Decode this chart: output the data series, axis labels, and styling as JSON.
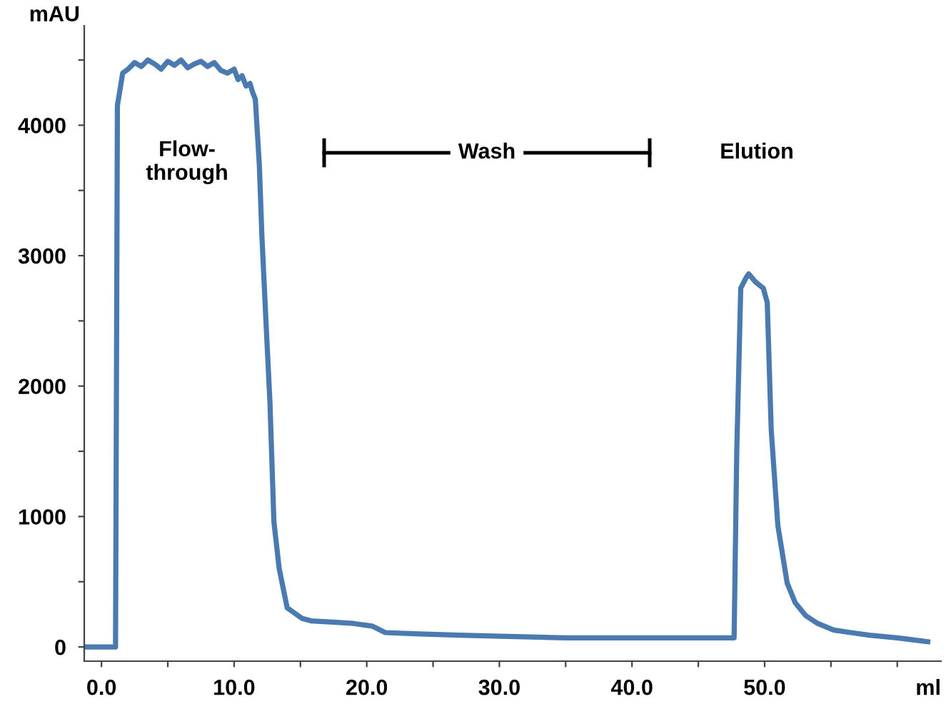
{
  "chart_data": {
    "type": "line",
    "xlabel": "ml",
    "ylabel": "mAU",
    "x": [
      -1.3,
      1.0,
      1.06,
      1.2,
      1.6,
      2.0,
      2.5,
      3.0,
      3.5,
      4.0,
      4.5,
      5.0,
      5.5,
      6.0,
      6.5,
      7.0,
      7.5,
      8.0,
      8.5,
      9.0,
      9.5,
      10.0,
      10.3,
      10.6,
      10.9,
      11.2,
      11.4,
      11.6,
      11.9,
      12.1,
      12.4,
      12.7,
      13.0,
      13.4,
      14.0,
      15.1,
      15.8,
      17.5,
      19.0,
      20.4,
      20.8,
      21.4,
      24.0,
      27.0,
      30.7,
      35.0,
      40.0,
      43.5,
      46.5,
      47.7,
      47.9,
      48.2,
      48.6,
      48.8,
      49.3,
      49.9,
      50.2,
      50.5,
      51.0,
      51.7,
      52.3,
      53.1,
      54.0,
      55.2,
      56.5,
      57.9,
      60.0,
      62.3
    ],
    "series": [
      {
        "color": "#4a7ab0",
        "values": [
          0,
          0,
          0,
          4150,
          4400,
          4430,
          4480,
          4450,
          4500,
          4470,
          4430,
          4490,
          4460,
          4500,
          4440,
          4470,
          4490,
          4450,
          4480,
          4420,
          4400,
          4430,
          4350,
          4380,
          4300,
          4320,
          4250,
          4200,
          3700,
          3140,
          2500,
          1880,
          960,
          600,
          300,
          220,
          200,
          190,
          180,
          160,
          140,
          110,
          100,
          90,
          80,
          70,
          70,
          70,
          70,
          70,
          1500,
          2750,
          2830,
          2860,
          2800,
          2750,
          2640,
          1660,
          930,
          490,
          340,
          240,
          180,
          130,
          110,
          90,
          70,
          40
        ]
      }
    ],
    "xlim": [
      -1.3,
      63.3
    ],
    "xticks": [
      {
        "value": 0,
        "label": "0.0"
      },
      {
        "value": 5,
        "label": null
      },
      {
        "value": 10,
        "label": "10.0"
      },
      {
        "value": 15,
        "label": null
      },
      {
        "value": 20,
        "label": "20.0"
      },
      {
        "value": 25,
        "label": null
      },
      {
        "value": 30,
        "label": "30.0"
      },
      {
        "value": 35,
        "label": null
      },
      {
        "value": 40,
        "label": "40.0"
      },
      {
        "value": 45,
        "label": null
      },
      {
        "value": 50,
        "label": "50.0"
      },
      {
        "value": 55,
        "label": null
      },
      {
        "value": 60,
        "label": null
      }
    ],
    "ylim": [
      -109,
      4763
    ],
    "yticks": [
      0,
      {
        "value": 500,
        "label": null
      },
      1000,
      {
        "value": 1500,
        "label": null
      },
      2000,
      {
        "value": 2500,
        "label": null
      },
      3000,
      {
        "value": 3500,
        "label": null
      },
      4000,
      {
        "value": 4500,
        "label": null
      }
    ],
    "annotations": [
      "Flow-\nthrough",
      "Wash",
      "Elution"
    ],
    "grid": false,
    "legend": false,
    "marker": "none",
    "line_style": "solid"
  }
}
